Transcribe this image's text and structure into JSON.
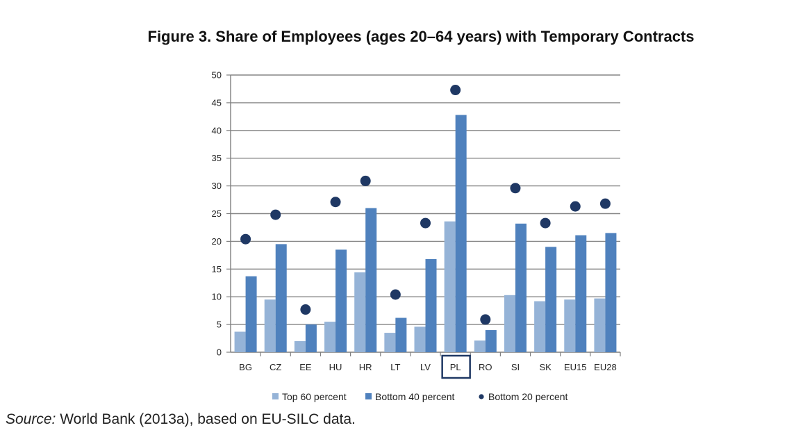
{
  "figure": {
    "title": "Figure 3. Share of Employees (ages 20–64 years) with Temporary Contracts"
  },
  "source": {
    "lead": "Source:",
    "text": " World Bank (2013a), based on EU-SILC data."
  },
  "chart_data": {
    "type": "bar",
    "categories": [
      "BG",
      "CZ",
      "EE",
      "HU",
      "HR",
      "LT",
      "LV",
      "PL",
      "RO",
      "SI",
      "SK",
      "EU15",
      "EU28"
    ],
    "highlighted_category": "PL",
    "series": [
      {
        "name": "Top 60 percent",
        "kind": "bar",
        "color": "#95b3d7",
        "values": [
          3.7,
          9.5,
          2.0,
          5.5,
          14.4,
          3.5,
          4.6,
          23.6,
          2.1,
          10.3,
          9.2,
          9.5,
          9.7
        ]
      },
      {
        "name": "Bottom 40 percent",
        "kind": "bar",
        "color": "#4f81bd",
        "values": [
          13.7,
          19.5,
          5.0,
          18.5,
          26.0,
          6.2,
          16.8,
          42.8,
          4.0,
          23.2,
          19.0,
          21.1,
          21.5
        ]
      },
      {
        "name": "Bottom 20 percent",
        "kind": "dot",
        "color": "#1f3864",
        "values": [
          20.4,
          24.8,
          7.7,
          27.1,
          30.9,
          10.4,
          23.3,
          47.3,
          5.9,
          29.6,
          23.3,
          26.3,
          26.8
        ]
      }
    ],
    "ylim": [
      0,
      50
    ],
    "yticks": [
      0,
      5,
      10,
      15,
      20,
      25,
      30,
      35,
      40,
      45,
      50
    ],
    "grid": true,
    "legend_position": "bottom",
    "xlabel": "",
    "ylabel": ""
  }
}
